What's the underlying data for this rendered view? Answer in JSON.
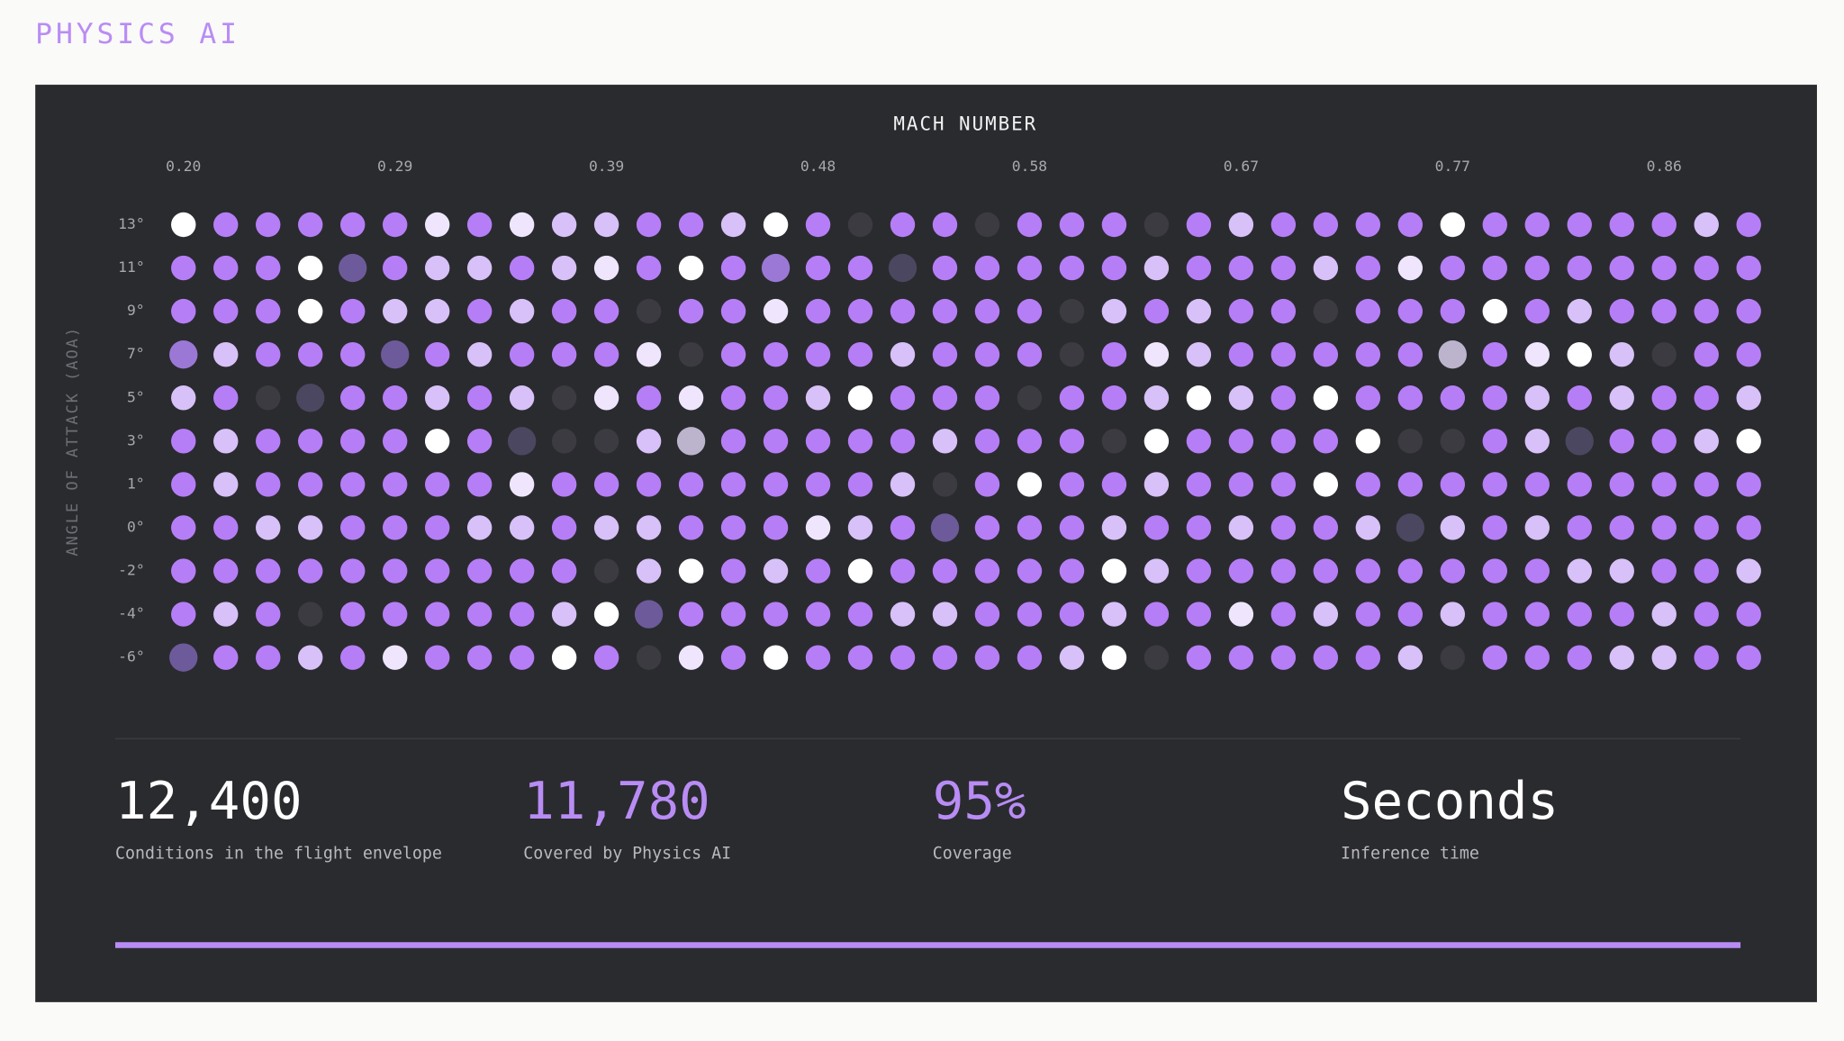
{
  "header": {
    "title": "PHYSICS AI"
  },
  "chart": {
    "x_axis_title": "MACH NUMBER",
    "x_labels": [
      "0.20",
      "0.29",
      "0.39",
      "0.48",
      "0.58",
      "0.67",
      "0.77",
      "0.86"
    ],
    "y_axis_title": "ANGLE OF ATTACK (AOA)",
    "y_labels": [
      "13°",
      "11°",
      "9°",
      "7°",
      "5°",
      "3°",
      "1°",
      "0°",
      "-2°",
      "-4°",
      "-6°"
    ]
  },
  "stats": [
    {
      "value": "12,400",
      "label": "Conditions in the flight envelope"
    },
    {
      "value": "11,780",
      "label": "Covered by Physics AI"
    },
    {
      "value": "95%",
      "label": "Coverage"
    },
    {
      "value": "Seconds",
      "label": "Inference time"
    }
  ]
}
